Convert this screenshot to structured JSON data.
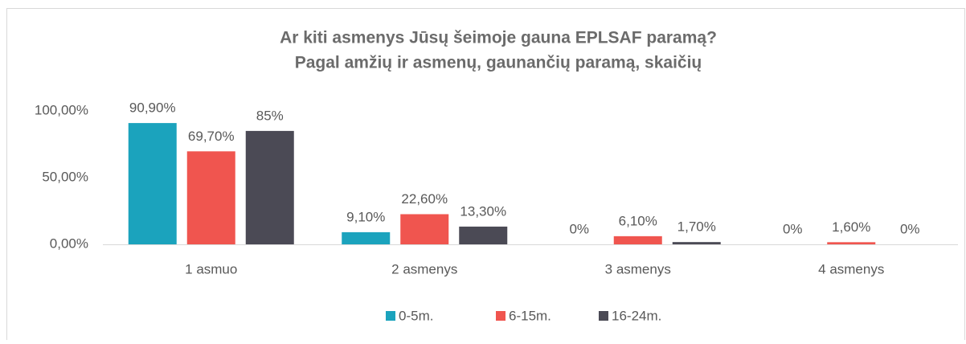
{
  "chart_data": {
    "type": "bar",
    "title": "Ar kiti asmenys Jūsų šeimoje gauna EPLSAF paramą?",
    "subtitle": "Pagal amžių ir asmenų, gaunančių paramą, skaičių",
    "categories": [
      "1 asmuo",
      "2 asmenys",
      "3 asmenys",
      "4 asmenys"
    ],
    "series": [
      {
        "name": "0-5m.",
        "color": "#1ba3bd",
        "values": [
          90.9,
          9.1,
          0,
          0
        ],
        "value_labels": [
          "90,90%",
          "9,10%",
          "0%",
          "0%"
        ]
      },
      {
        "name": "6-15m.",
        "color": "#f0554f",
        "values": [
          69.7,
          22.6,
          6.1,
          1.6
        ],
        "value_labels": [
          "69,70%",
          "22,60%",
          "6,10%",
          "1,60%"
        ]
      },
      {
        "name": "16-24m.",
        "color": "#4b4a55",
        "values": [
          85,
          13.3,
          1.7,
          0
        ],
        "value_labels": [
          "85%",
          "13,30%",
          "1,70%",
          "0%"
        ]
      }
    ],
    "ylim": [
      0,
      100
    ],
    "yticks": [
      {
        "value": 0,
        "label": "0,00%"
      },
      {
        "value": 50,
        "label": "50,00%"
      },
      {
        "value": 100,
        "label": "100,00%"
      }
    ],
    "grid": false,
    "legend": "bottom"
  }
}
